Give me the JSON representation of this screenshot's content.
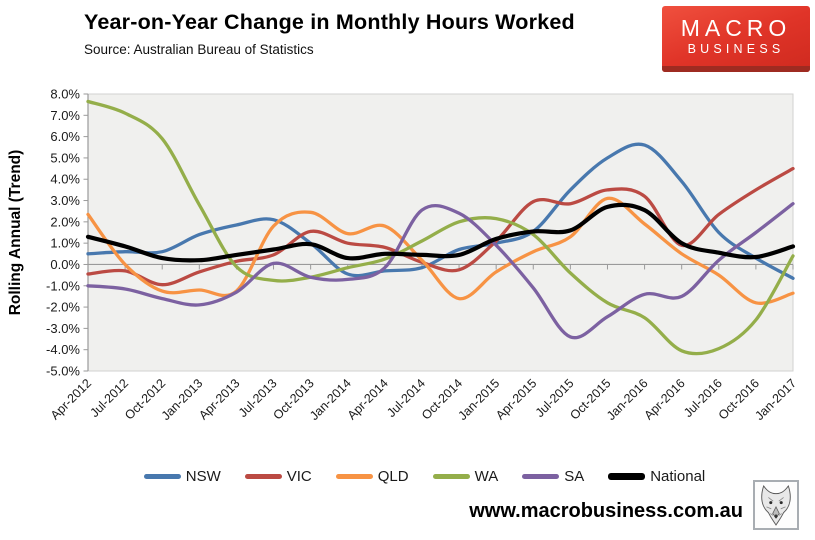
{
  "header": {
    "title": "Year-on-Year Change in Monthly Hours Worked",
    "source": "Source: Australian Bureau of Statistics"
  },
  "logo": {
    "line1": "MACRO",
    "line2": "BUSINESS",
    "bg_color": "#e03428",
    "strip_color": "#9e2b21"
  },
  "footer": {
    "url": "www.macrobusiness.com.au",
    "wolf_icon": "wolf-head-sketch"
  },
  "chart_data": {
    "type": "line",
    "title": "Year-on-Year Change in Monthly Hours Worked",
    "xlabel": "",
    "ylabel": "Rolling Annual (Trend)",
    "units": "percent",
    "ylim": [
      -5.0,
      8.0
    ],
    "y_tick_step": 1.0,
    "y_tick_labels": [
      "8.0%",
      "7.0%",
      "6.0%",
      "5.0%",
      "4.0%",
      "3.0%",
      "2.0%",
      "1.0%",
      "0.0%",
      "-1.0%",
      "-2.0%",
      "-3.0%",
      "-4.0%",
      "-5.0%"
    ],
    "categories": [
      "Apr-2012",
      "Jul-2012",
      "Oct-2012",
      "Jan-2013",
      "Apr-2013",
      "Jul-2013",
      "Oct-2013",
      "Jan-2014",
      "Apr-2014",
      "Jul-2014",
      "Oct-2014",
      "Jan-2015",
      "Apr-2015",
      "Jul-2015",
      "Oct-2015",
      "Jan-2016",
      "Apr-2016",
      "Jul-2016",
      "Oct-2016",
      "Jan-2017"
    ],
    "grid": false,
    "plot_bg": "#f0f0ee",
    "axis_color": "#9a9a9a",
    "border_color": "#d2d2d0",
    "legend_position": "bottom",
    "series": [
      {
        "name": "NSW",
        "color": "#4878ae",
        "emphasis": false,
        "values": [
          0.5,
          0.6,
          0.6,
          1.4,
          1.85,
          2.1,
          1.0,
          -0.45,
          -0.3,
          -0.15,
          0.7,
          1.0,
          1.55,
          3.5,
          5.0,
          5.6,
          3.9,
          1.5,
          0.3,
          -0.65
        ]
      },
      {
        "name": "VIC",
        "color": "#bb4a43",
        "emphasis": false,
        "values": [
          -0.45,
          -0.3,
          -0.95,
          -0.35,
          0.15,
          0.45,
          1.55,
          1.0,
          0.8,
          0.1,
          -0.25,
          1.1,
          2.95,
          2.85,
          3.5,
          3.2,
          0.9,
          2.35,
          3.5,
          4.5
        ]
      },
      {
        "name": "QLD",
        "color": "#f79344",
        "emphasis": false,
        "values": [
          2.35,
          0.0,
          -1.25,
          -1.2,
          -1.25,
          1.8,
          2.45,
          1.45,
          1.8,
          0.2,
          -1.6,
          -0.35,
          0.6,
          1.3,
          3.1,
          1.9,
          0.5,
          -0.5,
          -1.8,
          -1.35
        ]
      },
      {
        "name": "WA",
        "color": "#94ae4a",
        "emphasis": false,
        "values": [
          7.65,
          7.1,
          5.9,
          2.8,
          -0.1,
          -0.75,
          -0.6,
          -0.15,
          0.25,
          1.1,
          2.0,
          2.15,
          1.4,
          -0.4,
          -1.8,
          -2.5,
          -4.05,
          -3.95,
          -2.6,
          0.4
        ]
      },
      {
        "name": "SA",
        "color": "#7c61a1",
        "emphasis": false,
        "values": [
          -1.0,
          -1.15,
          -1.6,
          -1.9,
          -1.3,
          0.05,
          -0.6,
          -0.7,
          -0.15,
          2.55,
          2.4,
          0.9,
          -1.1,
          -3.4,
          -2.45,
          -1.4,
          -1.5,
          0.2,
          1.5,
          2.85
        ]
      },
      {
        "name": "National",
        "color": "#000000",
        "emphasis": true,
        "values": [
          1.3,
          0.85,
          0.3,
          0.2,
          0.45,
          0.7,
          0.95,
          0.3,
          0.5,
          0.45,
          0.45,
          1.2,
          1.55,
          1.6,
          2.7,
          2.55,
          1.0,
          0.55,
          0.35,
          0.85
        ]
      }
    ]
  }
}
